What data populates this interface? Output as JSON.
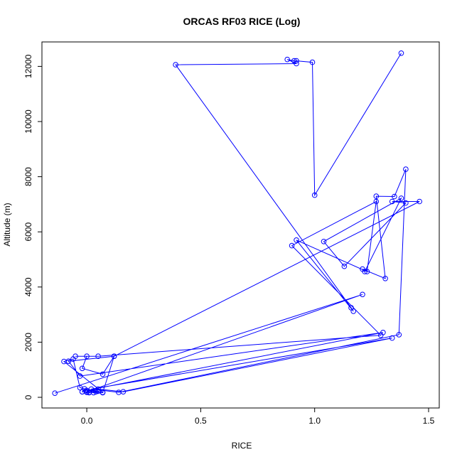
{
  "chart_data": {
    "type": "line",
    "title": "ORCAS RF03 RICE (Log)",
    "xlabel": "RICE",
    "ylabel": "Altitude (m)",
    "xlim": [
      -0.15,
      1.5
    ],
    "ylim": [
      0,
      12500
    ],
    "x_ticks": [
      0.0,
      0.5,
      1.0,
      1.5
    ],
    "x_tick_labels": [
      "0.0",
      "0.5",
      "1.0",
      "1.5"
    ],
    "y_ticks": [
      0,
      2000,
      4000,
      6000,
      8000,
      10000,
      12000
    ],
    "y_tick_labels": [
      "0",
      "2000",
      "4000",
      "6000",
      "8000",
      "10000",
      "12000"
    ],
    "grid": false,
    "legend": "none",
    "color": "#0000ff",
    "marker": "open-circle",
    "series": [
      {
        "x": [
          1.38,
          1.0,
          0.99,
          0.92,
          0.91,
          0.88,
          0.92,
          0.39,
          1.16,
          1.17,
          0.92,
          1.23,
          1.27,
          0.9,
          1.29,
          0.05,
          -0.05,
          0.0,
          -0.02,
          0.07,
          0.12,
          -0.08,
          -0.03,
          1.3,
          0.0,
          0.05,
          0.16,
          1.34,
          0.02,
          0.14,
          1.37,
          1.4,
          1.35,
          1.27,
          1.31,
          1.21,
          1.22,
          1.38,
          1.04,
          1.13,
          1.4,
          1.34,
          1.46,
          0.12,
          0.07,
          0.03,
          0.01,
          0.05,
          -0.01,
          -0.02,
          0.0,
          0.01,
          0.04,
          -0.03,
          -0.06,
          -0.1,
          0.07,
          -0.02,
          0.0,
          1.21,
          -0.14
        ],
        "y": [
          12480,
          7330,
          12150,
          12200,
          12200,
          12250,
          12100,
          12060,
          3250,
          3120,
          5700,
          4560,
          7100,
          5500,
          2250,
          1490,
          1490,
          1490,
          1050,
          840,
          1490,
          1310,
          770,
          2350,
          250,
          300,
          200,
          2150,
          300,
          180,
          2270,
          8270,
          7280,
          7290,
          4310,
          4650,
          4560,
          7220,
          5650,
          4750,
          7050,
          7100,
          7100,
          1490,
          170,
          170,
          180,
          220,
          310,
          200,
          180,
          170,
          200,
          350,
          1390,
          1300,
          180,
          200,
          200,
          3730,
          150
        ]
      }
    ]
  }
}
